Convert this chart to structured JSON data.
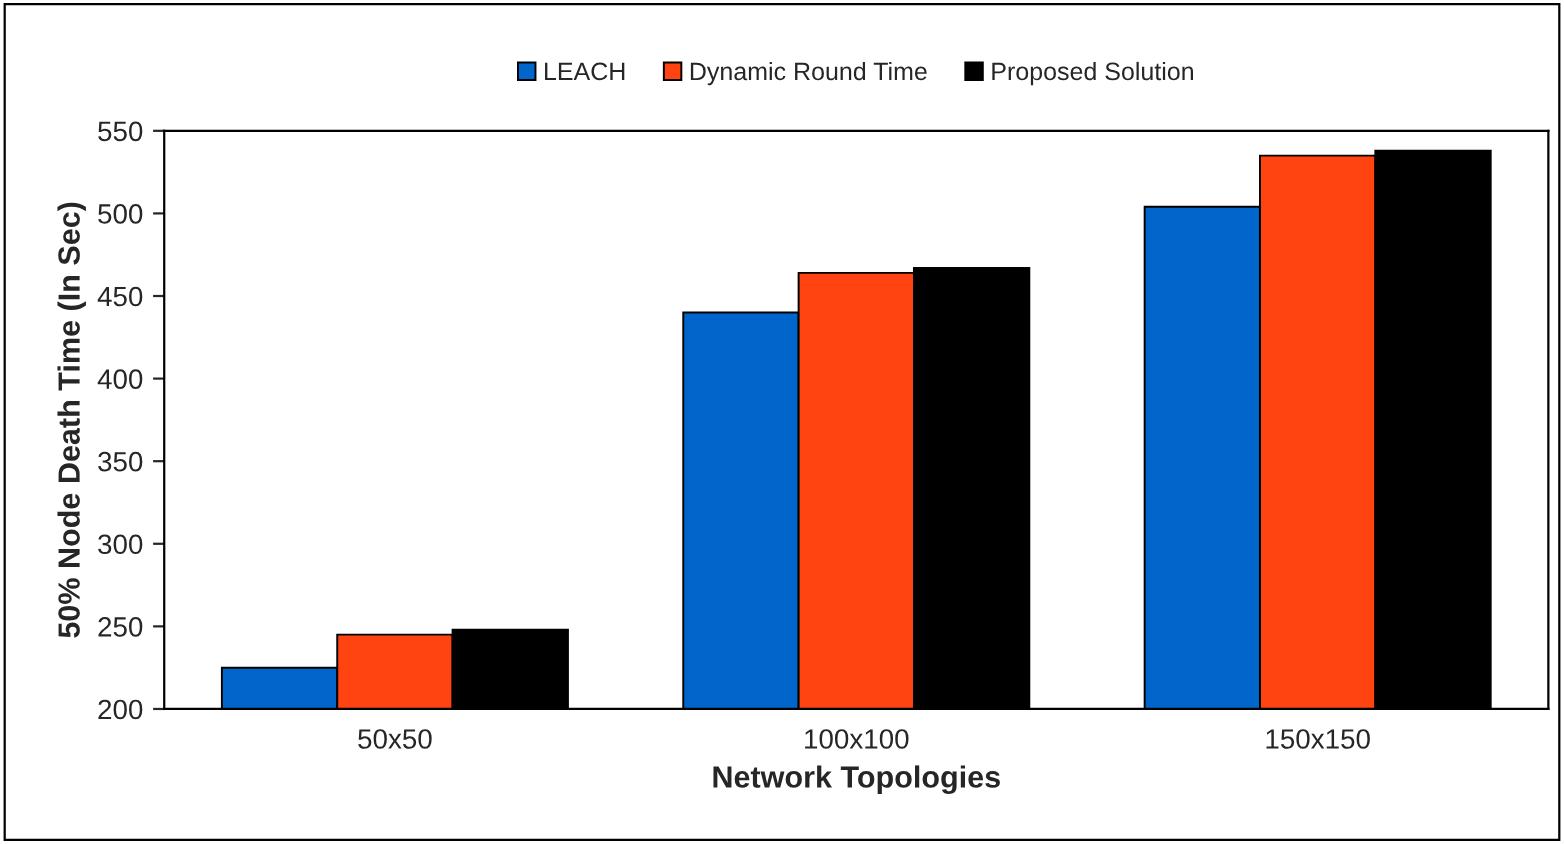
{
  "chart_data": {
    "type": "bar",
    "xlabel": "Network Topologies",
    "ylabel": "50% Node Death Time (In Sec)",
    "categories": [
      "50x50",
      "100x100",
      "150x150"
    ],
    "series": [
      {
        "name": "LEACH",
        "color": "#0066cc",
        "values": [
          225,
          440,
          504
        ]
      },
      {
        "name": "Dynamic Round Time",
        "color": "#ff4411",
        "values": [
          245,
          464,
          535
        ]
      },
      {
        "name": "Proposed Solution",
        "color": "#000000",
        "values": [
          248,
          467,
          538
        ]
      }
    ],
    "ylim": [
      200,
      550
    ],
    "yticks": [
      200,
      250,
      300,
      350,
      400,
      450,
      500,
      550
    ],
    "grid": false,
    "legend": "top"
  }
}
